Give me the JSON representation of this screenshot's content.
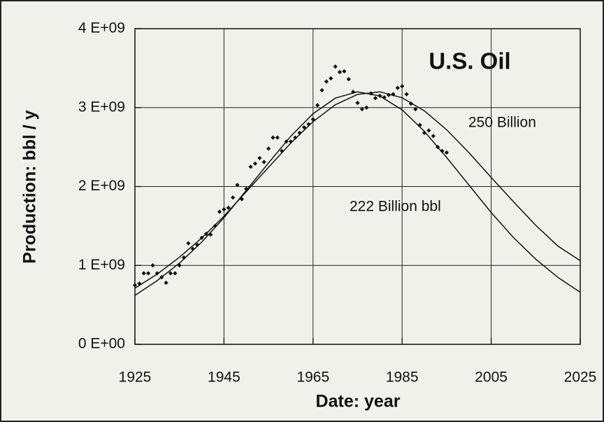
{
  "chart_data": {
    "type": "scatter",
    "title": "U.S. Oil",
    "x_label": "Date: year",
    "y_label": "Production: bbl / y",
    "xlim": [
      1925,
      2025
    ],
    "xticks": [
      1925,
      1945,
      1965,
      1985,
      2005,
      2025
    ],
    "ylim": [
      0,
      4000000000
    ],
    "yticks": [
      {
        "value": 0,
        "label": "0 E+00"
      },
      {
        "value": 1000000000,
        "label": "1 E+09"
      },
      {
        "value": 2000000000,
        "label": "2 E+09"
      },
      {
        "value": 3000000000,
        "label": "3 E+09"
      },
      {
        "value": 4000000000,
        "label": "4 E+09"
      }
    ],
    "grid": true,
    "color": "#111111",
    "points": {
      "x": [
        1925,
        1926,
        1927,
        1928,
        1929,
        1930,
        1931,
        1932,
        1933,
        1934,
        1935,
        1936,
        1937,
        1938,
        1939,
        1940,
        1941,
        1942,
        1943,
        1944,
        1945,
        1946,
        1947,
        1948,
        1949,
        1950,
        1951,
        1952,
        1953,
        1954,
        1955,
        1956,
        1957,
        1958,
        1959,
        1960,
        1961,
        1962,
        1963,
        1964,
        1965,
        1966,
        1967,
        1968,
        1969,
        1970,
        1971,
        1972,
        1973,
        1974,
        1975,
        1976,
        1977,
        1978,
        1979,
        1980,
        1981,
        1982,
        1983,
        1984,
        1985,
        1986,
        1987,
        1988,
        1989,
        1990,
        1991,
        1992,
        1993,
        1994,
        1995
      ],
      "values": [
        750000000,
        770000000,
        900000000,
        900000000,
        1000000000,
        900000000,
        850000000,
        780000000,
        900000000,
        900000000,
        1000000000,
        1100000000,
        1280000000,
        1210000000,
        1260000000,
        1350000000,
        1400000000,
        1390000000,
        1500000000,
        1680000000,
        1710000000,
        1730000000,
        1860000000,
        2020000000,
        1840000000,
        1970000000,
        2250000000,
        2290000000,
        2360000000,
        2310000000,
        2480000000,
        2620000000,
        2620000000,
        2450000000,
        2570000000,
        2570000000,
        2620000000,
        2680000000,
        2750000000,
        2790000000,
        2850000000,
        3030000000,
        3220000000,
        3330000000,
        3370000000,
        3520000000,
        3450000000,
        3460000000,
        3360000000,
        3200000000,
        3060000000,
        2980000000,
        3000000000,
        3180000000,
        3120000000,
        3150000000,
        3130000000,
        3160000000,
        3170000000,
        3250000000,
        3270000000,
        3170000000,
        3050000000,
        2980000000,
        2780000000,
        2680000000,
        2710000000,
        2640000000,
        2500000000,
        2450000000,
        2430000000
      ]
    },
    "curves": [
      {
        "name": "222 Billion bbl",
        "color": "#111111",
        "x": [
          1925,
          1930,
          1935,
          1940,
          1945,
          1950,
          1955,
          1960,
          1965,
          1970,
          1975,
          1980,
          1985,
          1990,
          1995,
          2000,
          2005,
          2010,
          2015,
          2020,
          2025
        ],
        "values": [
          620000000,
          807000000,
          1029000000,
          1296000000,
          1604000000,
          1951000000,
          2298000000,
          2637000000,
          2922000000,
          3120000000,
          3200000000,
          3147000000,
          2971000000,
          2700000000,
          2368000000,
          2019000000,
          1671000000,
          1353000000,
          1079000000,
          848000000,
          660000000
        ]
      },
      {
        "name": "250 Billion",
        "color": "#111111",
        "x": [
          1925,
          1930,
          1935,
          1940,
          1945,
          1950,
          1955,
          1960,
          1965,
          1970,
          1975,
          1980,
          1985,
          1990,
          1995,
          2000,
          2005,
          2010,
          2015,
          2020,
          2025
        ],
        "values": [
          710000000,
          890000000,
          1103000000,
          1347000000,
          1624000000,
          1934000000,
          2243000000,
          2550000000,
          2822000000,
          3036000000,
          3167000000,
          3200000000,
          3125000000,
          2959000000,
          2719000000,
          2429000000,
          2115000000,
          1808000000,
          1509000000,
          1245000000,
          1060000000
        ]
      }
    ]
  }
}
